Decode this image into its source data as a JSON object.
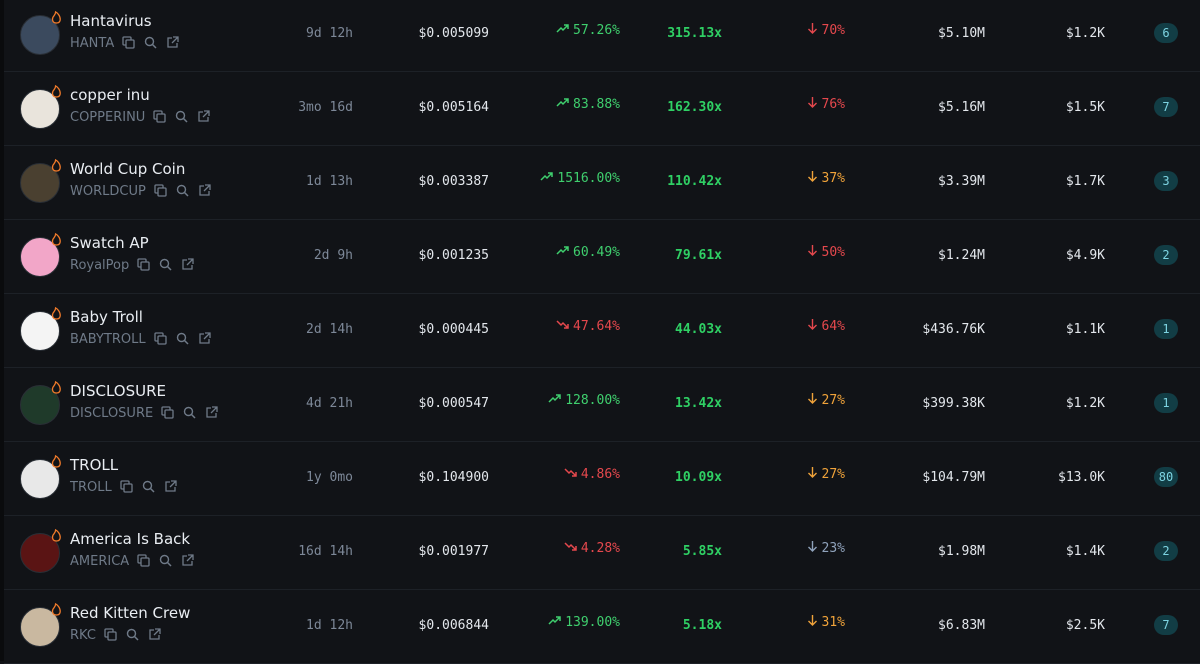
{
  "table": {
    "rows": [
      {
        "name": "Hantavirus",
        "symbol": "HANTA",
        "age": "9d 12h",
        "price": "$0.005099",
        "change": "57.26%",
        "trend": "up",
        "multiplier": "315.13x",
        "drop": "70%",
        "drop_color": "#e5484d",
        "market_cap": "$5.10M",
        "volume": "$1.2K",
        "badge": "6"
      },
      {
        "name": "copper inu",
        "symbol": "COPPERINU",
        "age": "3mo 16d",
        "price": "$0.005164",
        "change": "83.88%",
        "trend": "up",
        "multiplier": "162.30x",
        "drop": "76%",
        "drop_color": "#e5484d",
        "market_cap": "$5.16M",
        "volume": "$1.5K",
        "badge": "7"
      },
      {
        "name": "World Cup Coin",
        "symbol": "WORLDCUP",
        "age": "1d 13h",
        "price": "$0.003387",
        "change": "1516.00%",
        "trend": "up",
        "multiplier": "110.42x",
        "drop": "37%",
        "drop_color": "#f0a33a",
        "market_cap": "$3.39M",
        "volume": "$1.7K",
        "badge": "3"
      },
      {
        "name": "Swatch AP",
        "symbol": "RoyalPop",
        "age": "2d 9h",
        "price": "$0.001235",
        "change": "60.49%",
        "trend": "up",
        "multiplier": "79.61x",
        "drop": "50%",
        "drop_color": "#e5484d",
        "market_cap": "$1.24M",
        "volume": "$4.9K",
        "badge": "2"
      },
      {
        "name": "Baby Troll",
        "symbol": "BABYTROLL",
        "age": "2d 14h",
        "price": "$0.000445",
        "change": "47.64%",
        "trend": "down",
        "multiplier": "44.03x",
        "drop": "64%",
        "drop_color": "#e5484d",
        "market_cap": "$436.76K",
        "volume": "$1.1K",
        "badge": "1"
      },
      {
        "name": "DISCLOSURE",
        "symbol": "DISCLOSURE",
        "age": "4d 21h",
        "price": "$0.000547",
        "change": "128.00%",
        "trend": "up",
        "multiplier": "13.42x",
        "drop": "27%",
        "drop_color": "#f0a33a",
        "market_cap": "$399.38K",
        "volume": "$1.2K",
        "badge": "1"
      },
      {
        "name": "TROLL",
        "symbol": "TROLL",
        "age": "1y 0mo",
        "price": "$0.104900",
        "change": "4.86%",
        "trend": "down",
        "multiplier": "10.09x",
        "drop": "27%",
        "drop_color": "#f0a33a",
        "market_cap": "$104.79M",
        "volume": "$13.0K",
        "badge": "80"
      },
      {
        "name": "America Is Back",
        "symbol": "AMERICA",
        "age": "16d 14h",
        "price": "$0.001977",
        "change": "4.28%",
        "trend": "down",
        "multiplier": "5.85x",
        "drop": "23%",
        "drop_color": "#8fa2bb",
        "market_cap": "$1.98M",
        "volume": "$1.4K",
        "badge": "2"
      },
      {
        "name": "Red Kitten Crew",
        "symbol": "RKC",
        "age": "1d 12h",
        "price": "$0.006844",
        "change": "139.00%",
        "trend": "up",
        "multiplier": "5.18x",
        "drop": "31%",
        "drop_color": "#f0a33a",
        "market_cap": "$6.83M",
        "volume": "$2.5K",
        "badge": "7"
      }
    ]
  }
}
